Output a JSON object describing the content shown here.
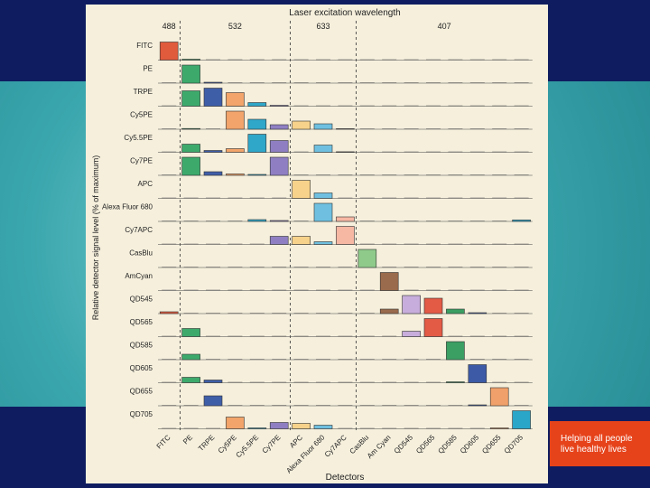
{
  "chart_data": {
    "type": "bar",
    "title": "Laser excitation wavelength",
    "xlabel": "Detectors",
    "ylabel": "Relative detector signal level (% of maximum)",
    "ylim": [
      0,
      100
    ],
    "lasers": [
      {
        "label": "488",
        "first_detector": 0,
        "last_detector": 0
      },
      {
        "label": "532",
        "first_detector": 1,
        "last_detector": 5
      },
      {
        "label": "633",
        "first_detector": 6,
        "last_detector": 8
      },
      {
        "label": "407",
        "first_detector": 9,
        "last_detector": 16
      }
    ],
    "laser_dividers_after_detector": [
      0,
      5,
      8
    ],
    "detectors": [
      "FITC",
      "PE",
      "TRPE",
      "Cy5PE",
      "Cy5.5PE",
      "Cy7PE",
      "APC",
      "Alexa Fluor 680",
      "Cy7APC",
      "CasBlu",
      "Am Cyan",
      "QD545",
      "QD565",
      "QD585",
      "QD605",
      "QD655",
      "QD705"
    ],
    "detector_colors": [
      "#e05a3c",
      "#3daa6c",
      "#3f5ea8",
      "#f2a46a",
      "#2fa7c9",
      "#8f7fc2",
      "#f7d28a",
      "#6fc0e0",
      "#f6b7a3",
      "#8fca8a",
      "#9a6b4d",
      "#c7addb",
      "#e35a45",
      "#3b9e62",
      "#3c5aa6",
      "#f0a06a",
      "#2aa6c9"
    ],
    "dyes": [
      {
        "name": "FITC",
        "values": [
          100,
          5,
          0,
          0,
          0,
          0,
          0,
          0,
          0,
          0,
          0,
          0,
          0,
          0,
          0,
          0,
          0
        ]
      },
      {
        "name": "PE",
        "values": [
          0,
          100,
          5,
          0,
          0,
          0,
          0,
          0,
          0,
          0,
          0,
          0,
          0,
          0,
          0,
          0,
          0
        ]
      },
      {
        "name": "TRPE",
        "values": [
          0,
          85,
          100,
          75,
          20,
          5,
          0,
          0,
          0,
          0,
          0,
          0,
          0,
          0,
          0,
          0,
          0
        ]
      },
      {
        "name": "Cy5PE",
        "values": [
          0,
          4,
          0,
          100,
          55,
          25,
          45,
          30,
          3,
          0,
          0,
          0,
          0,
          0,
          0,
          0,
          0
        ]
      },
      {
        "name": "Cy5.5PE",
        "values": [
          0,
          45,
          10,
          20,
          100,
          65,
          0,
          40,
          3,
          0,
          0,
          0,
          0,
          0,
          0,
          0,
          0
        ]
      },
      {
        "name": "Cy7PE",
        "values": [
          0,
          100,
          20,
          8,
          5,
          100,
          0,
          0,
          0,
          0,
          0,
          0,
          0,
          0,
          0,
          0,
          0
        ]
      },
      {
        "name": "APC",
        "values": [
          0,
          0,
          0,
          0,
          0,
          0,
          100,
          30,
          0,
          0,
          0,
          0,
          0,
          0,
          0,
          0,
          0
        ]
      },
      {
        "name": "Alexa Fluor 680",
        "values": [
          0,
          0,
          0,
          0,
          10,
          5,
          0,
          100,
          25,
          0,
          0,
          0,
          0,
          0,
          0,
          0,
          8
        ]
      },
      {
        "name": "Cy7APC",
        "values": [
          0,
          0,
          0,
          0,
          0,
          45,
          45,
          15,
          100,
          0,
          0,
          0,
          0,
          0,
          0,
          0,
          0
        ]
      },
      {
        "name": "CasBlu",
        "values": [
          0,
          0,
          0,
          0,
          0,
          0,
          0,
          0,
          0,
          100,
          0,
          0,
          0,
          0,
          0,
          0,
          0
        ]
      },
      {
        "name": "AmCyan",
        "values": [
          0,
          0,
          0,
          0,
          0,
          0,
          0,
          0,
          0,
          0,
          100,
          0,
          0,
          0,
          0,
          0,
          0
        ]
      },
      {
        "name": "QD545",
        "values": [
          10,
          0,
          0,
          0,
          0,
          0,
          0,
          0,
          0,
          0,
          25,
          100,
          85,
          25,
          5,
          0,
          0
        ]
      },
      {
        "name": "QD565",
        "values": [
          0,
          45,
          0,
          0,
          0,
          0,
          0,
          0,
          0,
          0,
          0,
          30,
          100,
          0,
          0,
          0,
          0
        ]
      },
      {
        "name": "QD585",
        "values": [
          0,
          30,
          0,
          0,
          0,
          0,
          0,
          0,
          0,
          0,
          0,
          0,
          0,
          100,
          0,
          0,
          0
        ]
      },
      {
        "name": "QD605",
        "values": [
          0,
          30,
          15,
          0,
          0,
          0,
          0,
          0,
          0,
          0,
          0,
          0,
          0,
          5,
          100,
          0,
          0
        ]
      },
      {
        "name": "QD655",
        "values": [
          0,
          0,
          55,
          0,
          0,
          0,
          0,
          0,
          0,
          0,
          0,
          0,
          0,
          0,
          5,
          100,
          0
        ]
      },
      {
        "name": "QD705",
        "values": [
          0,
          0,
          0,
          65,
          5,
          35,
          30,
          20,
          0,
          0,
          0,
          0,
          0,
          0,
          0,
          5,
          100
        ]
      }
    ]
  },
  "side_label": {
    "line1": "Helping all people",
    "line2": "live healthy lives"
  }
}
